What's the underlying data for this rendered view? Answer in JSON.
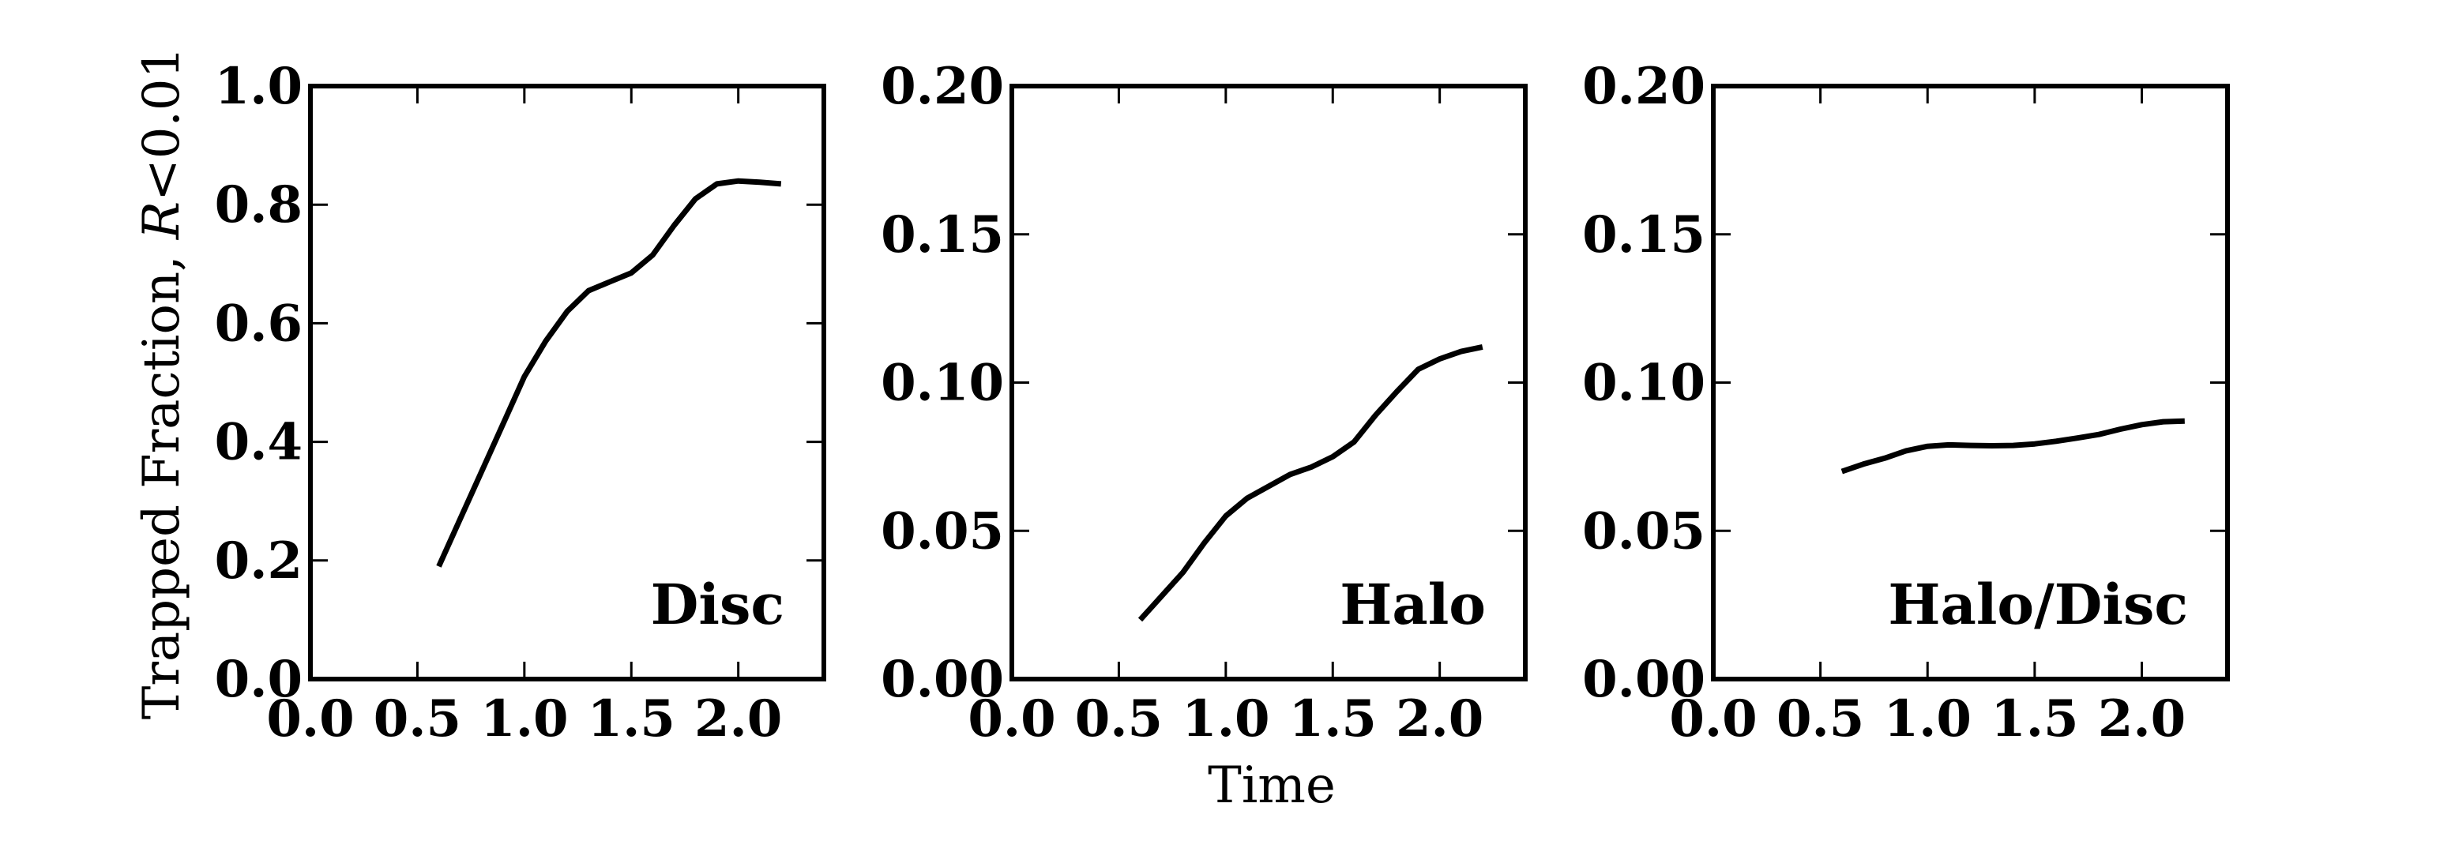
{
  "figure": {
    "ylabel_main": "Trapped Fraction, ",
    "ylabel_italic": "R",
    "ylabel_tail": "<0.01",
    "xlabel": "Time"
  },
  "chart_data": [
    {
      "type": "line",
      "title": "",
      "panel_label": "Disc",
      "xlabel": "",
      "ylabel": "Trapped Fraction, R<0.01",
      "xlim": [
        0.0,
        2.4
      ],
      "ylim": [
        0.0,
        1.0
      ],
      "xticks": [
        0.0,
        0.5,
        1.0,
        1.5,
        2.0
      ],
      "xtick_labels": [
        "0.0",
        "0.5",
        "1.0",
        "1.5",
        "2.0"
      ],
      "yticks": [
        0.0,
        0.2,
        0.4,
        0.6,
        0.8,
        1.0
      ],
      "ytick_labels": [
        "0.0",
        "0.2",
        "0.4",
        "0.6",
        "0.8",
        "1.0"
      ],
      "grid": false,
      "color": "#000000",
      "x": [
        0.6,
        0.7,
        0.8,
        0.9,
        1.0,
        1.1,
        1.2,
        1.3,
        1.4,
        1.5,
        1.6,
        1.7,
        1.8,
        1.9,
        2.0,
        2.1,
        2.2
      ],
      "y": [
        0.19,
        0.27,
        0.35,
        0.43,
        0.51,
        0.57,
        0.62,
        0.655,
        0.67,
        0.685,
        0.715,
        0.765,
        0.81,
        0.835,
        0.84,
        0.838,
        0.835
      ]
    },
    {
      "type": "line",
      "title": "",
      "panel_label": "Halo",
      "xlabel": "Time",
      "ylabel": "",
      "xlim": [
        0.0,
        2.4
      ],
      "ylim": [
        0.0,
        0.2
      ],
      "xticks": [
        0.0,
        0.5,
        1.0,
        1.5,
        2.0
      ],
      "xtick_labels": [
        "0.0",
        "0.5",
        "1.0",
        "1.5",
        "2.0"
      ],
      "yticks": [
        0.0,
        0.05,
        0.1,
        0.15,
        0.2
      ],
      "ytick_labels": [
        "0.00",
        "0.05",
        "0.10",
        "0.15",
        "0.20"
      ],
      "grid": false,
      "color": "#000000",
      "x": [
        0.6,
        0.7,
        0.8,
        0.9,
        1.0,
        1.1,
        1.2,
        1.3,
        1.4,
        1.5,
        1.6,
        1.7,
        1.8,
        1.9,
        2.0,
        2.1,
        2.2
      ],
      "y": [
        0.02,
        0.028,
        0.036,
        0.046,
        0.055,
        0.061,
        0.065,
        0.069,
        0.0715,
        0.075,
        0.08,
        0.089,
        0.097,
        0.1045,
        0.108,
        0.1105,
        0.112
      ]
    },
    {
      "type": "line",
      "title": "",
      "panel_label": "Halo/Disc",
      "xlabel": "",
      "ylabel": "",
      "xlim": [
        0.0,
        2.4
      ],
      "ylim": [
        0.0,
        0.2
      ],
      "xticks": [
        0.0,
        0.5,
        1.0,
        1.5,
        2.0
      ],
      "xtick_labels": [
        "0.0",
        "0.5",
        "1.0",
        "1.5",
        "2.0"
      ],
      "yticks": [
        0.0,
        0.05,
        0.1,
        0.15,
        0.2
      ],
      "ytick_labels": [
        "0.00",
        "0.05",
        "0.10",
        "0.15",
        "0.20"
      ],
      "grid": false,
      "color": "#000000",
      "x": [
        0.6,
        0.7,
        0.8,
        0.9,
        1.0,
        1.1,
        1.2,
        1.3,
        1.4,
        1.5,
        1.6,
        1.7,
        1.8,
        1.9,
        2.0,
        2.1,
        2.2
      ],
      "y": [
        0.07,
        0.0725,
        0.0745,
        0.077,
        0.0785,
        0.079,
        0.0788,
        0.0787,
        0.0788,
        0.0793,
        0.0802,
        0.0813,
        0.0825,
        0.0843,
        0.0858,
        0.0868,
        0.087
      ]
    }
  ]
}
